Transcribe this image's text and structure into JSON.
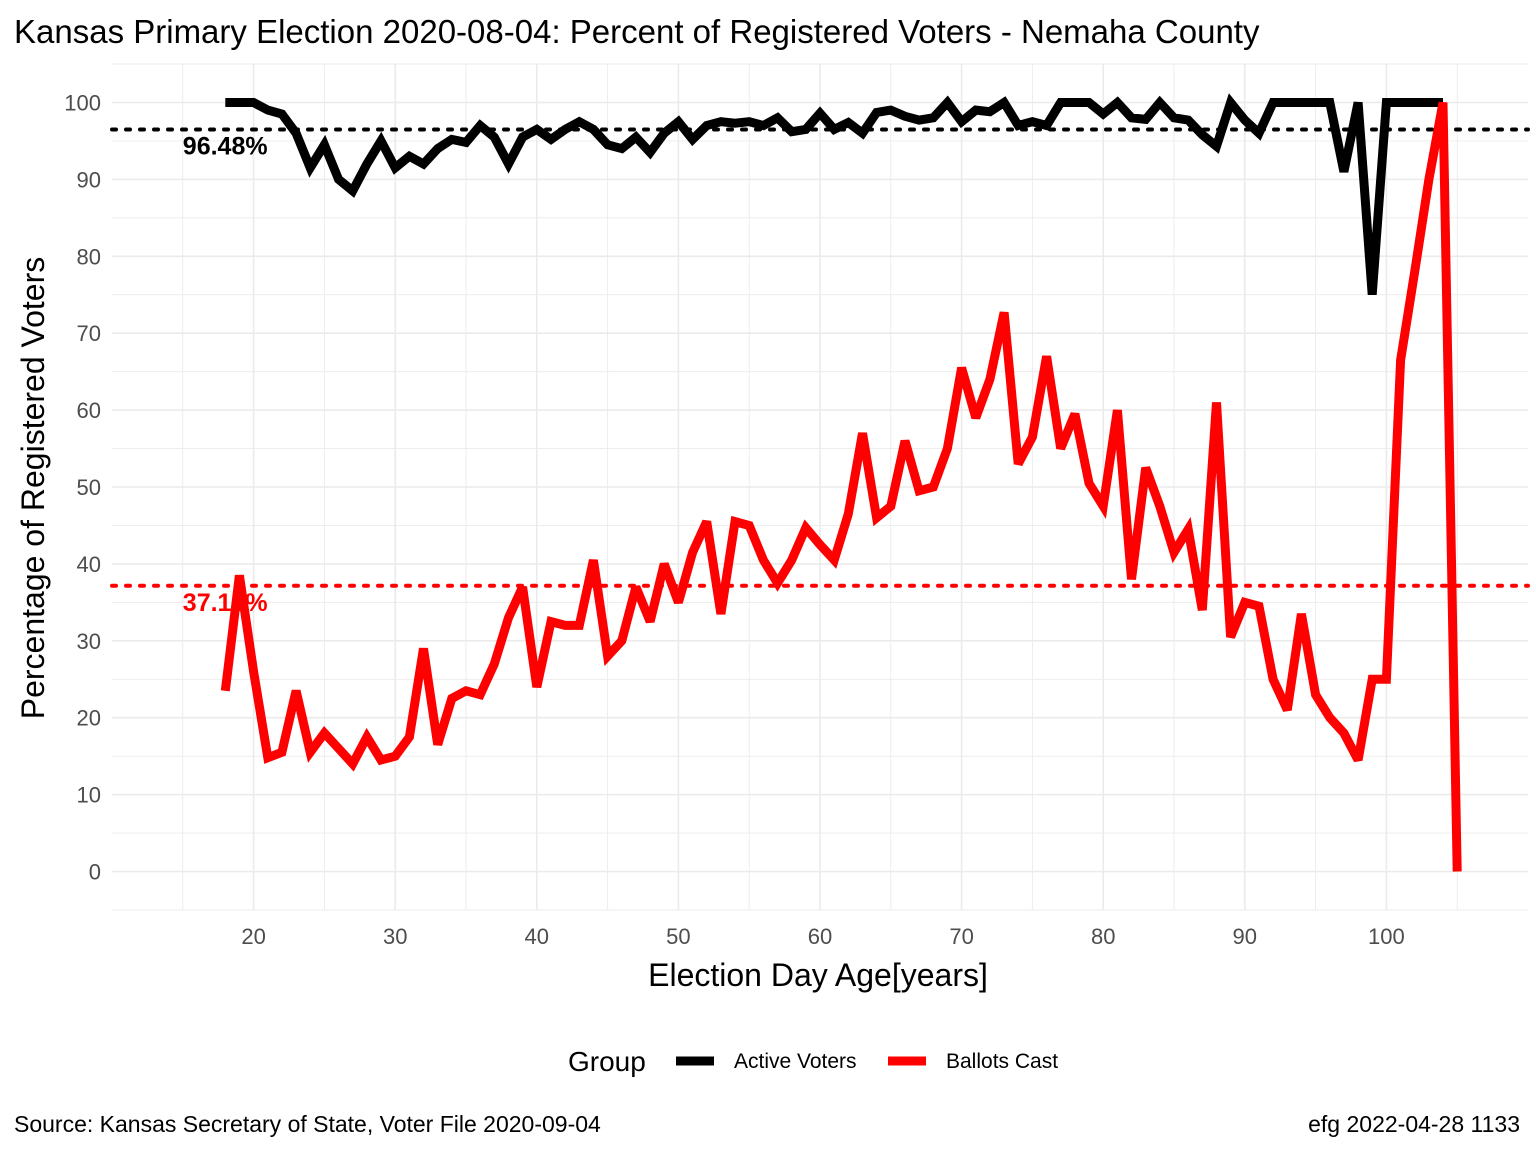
{
  "chart_data": {
    "type": "line",
    "title": "Kansas Primary Election 2020-08-04:  Percent of Registered Voters - Nemaha County",
    "xlabel": "Election Day Age[years]",
    "ylabel": "Percentage of Registered Voters",
    "xlim": [
      10,
      110
    ],
    "ylim": [
      -5,
      105
    ],
    "x_ticks": [
      20,
      30,
      40,
      50,
      60,
      70,
      80,
      90,
      100
    ],
    "y_ticks": [
      0,
      10,
      20,
      30,
      40,
      50,
      60,
      70,
      80,
      90,
      100
    ],
    "grid": true,
    "legend": {
      "title": "Group",
      "position": "bottom"
    },
    "series": [
      {
        "name": "Active Voters",
        "color": "#000000",
        "x": [
          18,
          19,
          20,
          21,
          22,
          23,
          24,
          25,
          26,
          27,
          28,
          29,
          30,
          31,
          32,
          33,
          34,
          35,
          36,
          37,
          38,
          39,
          40,
          41,
          42,
          43,
          44,
          45,
          46,
          47,
          48,
          49,
          50,
          51,
          52,
          53,
          54,
          55,
          56,
          57,
          58,
          59,
          60,
          61,
          62,
          63,
          64,
          65,
          66,
          67,
          68,
          69,
          70,
          71,
          72,
          73,
          74,
          75,
          76,
          77,
          78,
          79,
          80,
          81,
          82,
          83,
          84,
          85,
          86,
          87,
          88,
          89,
          90,
          91,
          92,
          93,
          94,
          95,
          96,
          97,
          98,
          99,
          100,
          101,
          102,
          103,
          104
        ],
        "values": [
          100,
          100,
          100,
          99,
          98.5,
          96,
          91.5,
          94.5,
          90,
          88.5,
          92,
          95,
          91.5,
          93,
          92,
          94,
          95.2,
          94.8,
          97,
          95.5,
          92,
          95.5,
          96.5,
          95.2,
          96.5,
          97.5,
          96.5,
          94.5,
          94,
          95.5,
          93.5,
          96,
          97.5,
          95.2,
          97,
          97.5,
          97.3,
          97.5,
          97,
          98,
          96.2,
          96.5,
          98.6,
          96.5,
          97.4,
          96,
          98.7,
          99,
          98.2,
          97.7,
          98,
          100,
          97.5,
          99,
          98.8,
          100,
          97,
          97.5,
          97,
          100,
          100,
          100,
          98.5,
          100,
          98,
          97.8,
          100,
          98,
          97.7,
          95.8,
          94.3,
          100,
          97.7,
          96,
          100,
          100,
          100,
          100,
          100,
          91,
          100,
          75,
          100,
          100,
          100,
          100,
          100
        ],
        "mean": 96.48,
        "mean_label": "96.48%"
      },
      {
        "name": "Ballots Cast",
        "color": "#ff0000",
        "x": [
          18,
          19,
          20,
          21,
          22,
          23,
          24,
          25,
          26,
          27,
          28,
          29,
          30,
          31,
          32,
          33,
          34,
          35,
          36,
          37,
          38,
          39,
          40,
          41,
          42,
          43,
          44,
          45,
          46,
          47,
          48,
          49,
          50,
          51,
          52,
          53,
          54,
          55,
          56,
          57,
          58,
          59,
          60,
          61,
          62,
          63,
          64,
          65,
          66,
          67,
          68,
          69,
          70,
          71,
          72,
          73,
          74,
          75,
          76,
          77,
          78,
          79,
          80,
          81,
          82,
          83,
          84,
          85,
          86,
          87,
          88,
          89,
          90,
          91,
          92,
          93,
          94,
          95,
          96,
          97,
          98,
          99,
          100,
          101,
          102,
          103,
          104,
          105
        ],
        "values": [
          23.5,
          38.5,
          26,
          14.8,
          15.5,
          23.5,
          15.5,
          18,
          16,
          14,
          17.5,
          14.5,
          15,
          17.5,
          29,
          16.5,
          22.5,
          23.5,
          23,
          27,
          33,
          37,
          24,
          32.5,
          32,
          32,
          40.5,
          28,
          30,
          37,
          32.5,
          40,
          35,
          41.5,
          45.5,
          33.5,
          45.5,
          45,
          40.5,
          37.5,
          40.5,
          44.7,
          42.5,
          40.5,
          46.5,
          57,
          46,
          47.5,
          56,
          49.5,
          50,
          55,
          65.5,
          59,
          64,
          72.7,
          53,
          56.5,
          67,
          55,
          59.5,
          50.5,
          47.5,
          60,
          38,
          52.5,
          47.5,
          41.5,
          44.5,
          34,
          61,
          30.5,
          35,
          34.5,
          25,
          21,
          33.5,
          23,
          20,
          18,
          14.5,
          25,
          25,
          66.5,
          78,
          90,
          100,
          0
        ],
        "mean": 37.16,
        "mean_label": "37.16%"
      }
    ]
  },
  "caption": {
    "source": "Source:  Kansas Secretary of State, Voter File  2020-09-04",
    "credit": "efg 2022-04-28 1133"
  }
}
